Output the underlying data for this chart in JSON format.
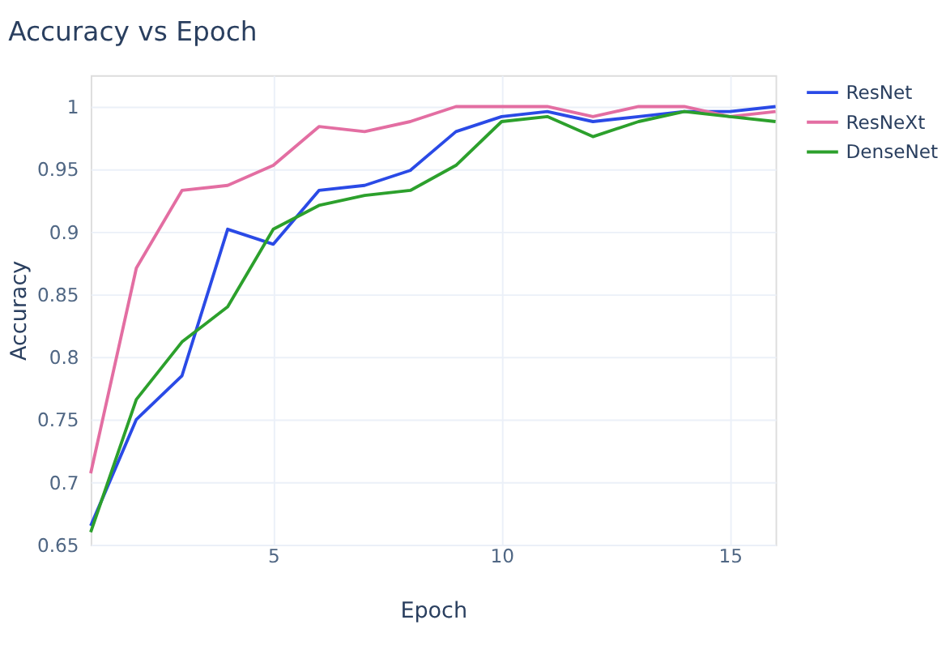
{
  "chart_data": {
    "type": "line",
    "title": "Accuracy vs Epoch",
    "xlabel": "Epoch",
    "ylabel": "Accuracy",
    "x": [
      1,
      2,
      3,
      4,
      5,
      6,
      7,
      8,
      9,
      10,
      11,
      12,
      13,
      14,
      15,
      16
    ],
    "series": [
      {
        "name": "ResNet",
        "color": "#2a4ae6",
        "values": [
          0.665,
          0.75,
          0.785,
          0.902,
          0.89,
          0.933,
          0.937,
          0.949,
          0.98,
          0.992,
          0.996,
          0.988,
          0.992,
          0.996,
          0.996,
          1.0
        ]
      },
      {
        "name": "ResNeXt",
        "color": "#e36ea2",
        "values": [
          0.707,
          0.871,
          0.933,
          0.937,
          0.953,
          0.984,
          0.98,
          0.988,
          1.0,
          1.0,
          1.0,
          0.992,
          1.0,
          1.0,
          0.992,
          0.996
        ]
      },
      {
        "name": "DenseNet",
        "color": "#2ca02c",
        "values": [
          0.66,
          0.766,
          0.812,
          0.84,
          0.902,
          0.921,
          0.929,
          0.933,
          0.953,
          0.988,
          0.992,
          0.976,
          0.988,
          0.996,
          0.992,
          0.988
        ]
      }
    ],
    "xlim": [
      1,
      16
    ],
    "xticks": [
      5,
      10,
      15
    ],
    "ylim": [
      0.65,
      1.025
    ],
    "yticks": [
      0.65,
      0.7,
      0.75,
      0.8,
      0.85,
      0.9,
      0.95,
      1
    ],
    "grid": true,
    "legend": "top right",
    "marker": "none",
    "line_style": "solid"
  }
}
